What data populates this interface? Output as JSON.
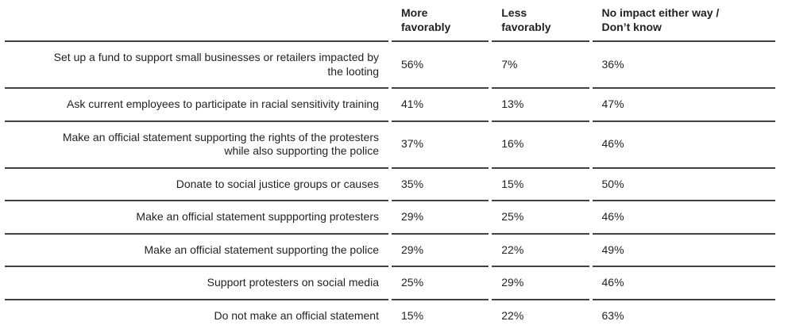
{
  "table": {
    "headers": [
      "",
      "More\nfavorably",
      "Less\nfavorably",
      "No impact either way /\nDon’t know"
    ],
    "rows": [
      [
        "Set up a fund to support small businesses or retailers impacted by\nthe looting",
        "56%",
        "7%",
        "36%"
      ],
      [
        "Ask current employees to participate in racial sensitivity training",
        "41%",
        "13%",
        "47%"
      ],
      [
        "Make an official statement supporting the rights of the protesters\nwhile also supporting the police",
        "37%",
        "16%",
        "46%"
      ],
      [
        "Donate to social justice groups or causes",
        "35%",
        "15%",
        "50%"
      ],
      [
        "Make an official statement suppporting protesters",
        "29%",
        "25%",
        "46%"
      ],
      [
        "Make an official statement supporting the police",
        "29%",
        "22%",
        "49%"
      ],
      [
        "Support protesters on social media",
        "25%",
        "29%",
        "46%"
      ],
      [
        "Do not make an official statement",
        "15%",
        "22%",
        "63%"
      ]
    ]
  },
  "chart_data": {
    "type": "table",
    "title": "",
    "columns": [
      "More favorably",
      "Less favorably",
      "No impact either way / Don’t know"
    ],
    "categories": [
      "Set up a fund to support small businesses or retailers impacted by the looting",
      "Ask current employees to participate in racial sensitivity training",
      "Make an official statement supporting the rights of the protesters while also supporting the police",
      "Donate to social justice groups or causes",
      "Make an official statement suppporting protesters",
      "Make an official statement supporting the police",
      "Support protesters on social media",
      "Do not make an official statement"
    ],
    "series": [
      {
        "name": "More favorably",
        "values": [
          56,
          41,
          37,
          35,
          29,
          29,
          25,
          15
        ]
      },
      {
        "name": "Less favorably",
        "values": [
          7,
          13,
          16,
          15,
          25,
          22,
          29,
          22
        ]
      },
      {
        "name": "No impact either way / Don’t know",
        "values": [
          36,
          47,
          46,
          50,
          46,
          49,
          46,
          63
        ]
      }
    ],
    "values_unit": "%",
    "layout": {
      "grid": "horizontal-rules",
      "label_alignment": "right",
      "legend_position": "none"
    }
  },
  "colors": {
    "text": "#231f20",
    "rule": "#414141",
    "background": "#ffffff"
  }
}
